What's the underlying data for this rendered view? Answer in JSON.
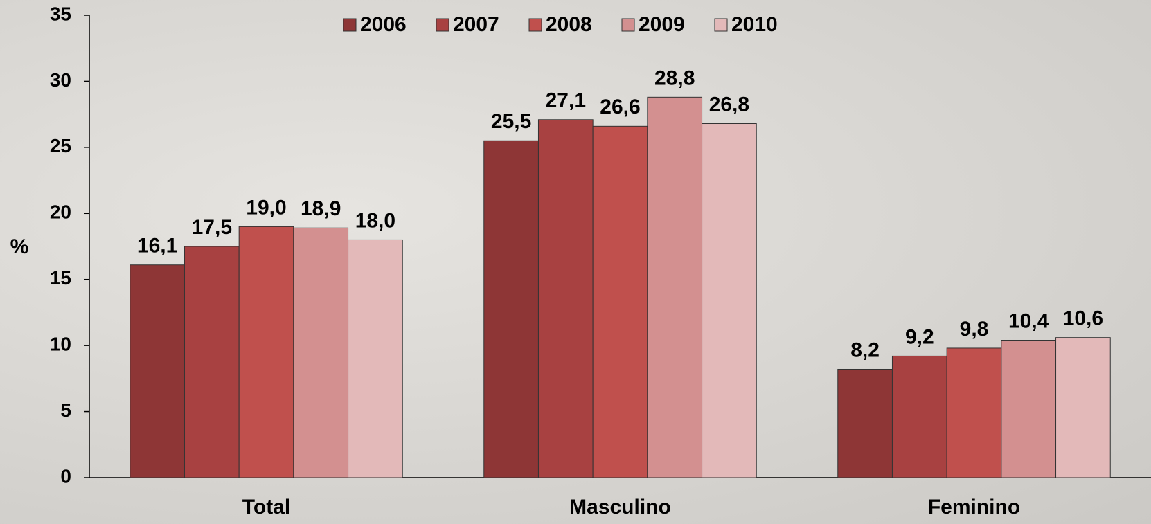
{
  "chart_data": {
    "type": "bar",
    "y_label": "%",
    "categories": [
      "Total",
      "Masculino",
      "Feminino"
    ],
    "series": [
      {
        "name": "2006",
        "color": "#8e3636",
        "values": [
          16.1,
          25.5,
          8.2
        ],
        "value_labels": [
          "16,1",
          "25,5",
          "8,2"
        ]
      },
      {
        "name": "2007",
        "color": "#a84141",
        "values": [
          17.5,
          27.1,
          9.2
        ],
        "value_labels": [
          "17,5",
          "27,1",
          "9,2"
        ]
      },
      {
        "name": "2008",
        "color": "#c0504d",
        "values": [
          19.0,
          26.6,
          9.8
        ],
        "value_labels": [
          "19,0",
          "26,6",
          "9,8"
        ]
      },
      {
        "name": "2009",
        "color": "#d39090",
        "values": [
          18.9,
          28.8,
          10.4
        ],
        "value_labels": [
          "18,9",
          "28,8",
          "10,4"
        ]
      },
      {
        "name": "2010",
        "color": "#e3b9b9",
        "values": [
          18.0,
          26.8,
          10.6
        ],
        "value_labels": [
          "18,0",
          "26,8",
          "10,6"
        ]
      }
    ],
    "ylim": [
      0,
      35
    ],
    "yticks": [
      0,
      5,
      10,
      15,
      20,
      25,
      30,
      35
    ],
    "legend": "top",
    "grid": false
  }
}
